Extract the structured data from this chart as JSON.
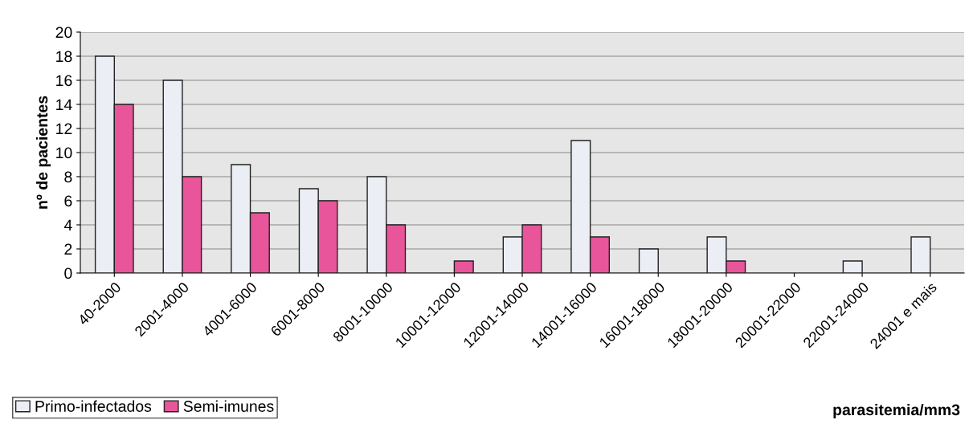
{
  "chart_data": {
    "type": "bar",
    "xlabel": "parasitemia/mm3",
    "ylabel": "nº de pacientes",
    "categories": [
      "40-2000",
      "2001-4000",
      "4001-6000",
      "6001-8000",
      "8001-10000",
      "10001-12000",
      "12001-14000",
      "14001-16000",
      "16001-18000",
      "18001-20000",
      "20001-22000",
      "22001-24000",
      "24001 e mais"
    ],
    "series": [
      {
        "name": "Primo-infectados",
        "color": "#eceef6",
        "values": [
          18,
          16,
          9,
          7,
          8,
          null,
          3,
          11,
          2,
          3,
          null,
          1,
          3
        ]
      },
      {
        "name": "Semi-imunes",
        "color": "#e8559a",
        "values": [
          14,
          8,
          5,
          6,
          4,
          1,
          4,
          3,
          null,
          1,
          null,
          null,
          null
        ]
      }
    ],
    "ylim": [
      0,
      20
    ],
    "yticks": [
      0,
      2,
      4,
      6,
      8,
      10,
      12,
      14,
      16,
      18,
      20
    ],
    "grid": "y",
    "legend": "bottom left"
  }
}
